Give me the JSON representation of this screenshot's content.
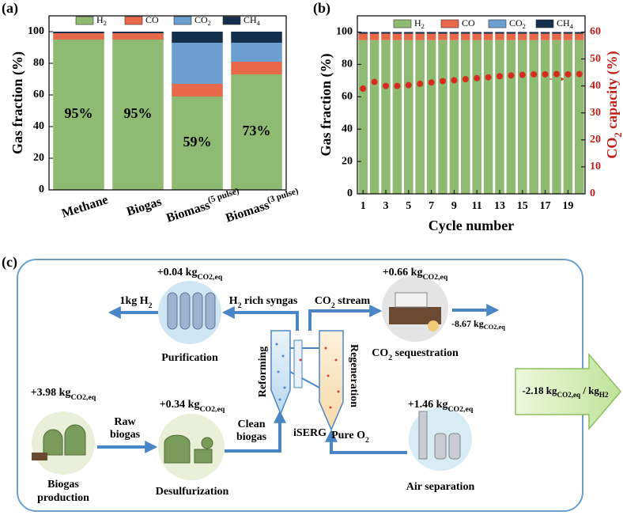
{
  "chart_data": [
    {
      "type": "bar",
      "stacked": true,
      "label": "(a)",
      "ylabel": "Gas fraction (%)",
      "categories": [
        "Methane",
        "Biogas",
        "Biomass(5 pulse)",
        "Biomass(3 pulse)"
      ],
      "series": [
        {
          "name": "H2",
          "color": "#8fba72",
          "values": [
            95,
            95,
            59,
            73
          ],
          "value_labels": [
            "95%",
            "95%",
            "59%",
            "73%"
          ]
        },
        {
          "name": "CO",
          "color": "#e8694a",
          "values": [
            4,
            4,
            8,
            8
          ]
        },
        {
          "name": "CO2",
          "color": "#6a9fcf",
          "values": [
            0,
            0,
            26,
            12
          ]
        },
        {
          "name": "CH4",
          "color": "#14304c",
          "values": [
            1,
            1,
            7,
            7
          ]
        }
      ],
      "ylim": [
        0,
        110
      ],
      "yticks": [
        0,
        20,
        40,
        60,
        80,
        100
      ]
    },
    {
      "type": "bar",
      "stacked": true,
      "label": "(b)",
      "ylabel": "Gas fraction (%)",
      "xlabel": "Cycle number",
      "y2label": "CO2 capacity (%)",
      "x": [
        1,
        2,
        3,
        4,
        5,
        6,
        7,
        8,
        9,
        10,
        11,
        12,
        13,
        14,
        15,
        16,
        17,
        18,
        19,
        20
      ],
      "series": [
        {
          "name": "H2",
          "color": "#8fba72",
          "values": [
            95,
            95,
            95,
            95,
            95,
            95,
            95,
            95,
            95,
            95,
            95,
            95,
            95,
            95,
            95,
            95,
            95,
            95,
            95,
            95
          ]
        },
        {
          "name": "CO",
          "color": "#e8694a",
          "values": [
            4,
            4,
            4,
            4,
            4,
            4,
            4,
            4,
            4,
            4,
            4,
            4,
            4,
            4,
            4,
            4,
            4,
            4,
            4,
            4
          ]
        },
        {
          "name": "CO2",
          "color": "#6a9fcf",
          "values": [
            0,
            0,
            0,
            0,
            0,
            0,
            0,
            0,
            0,
            0,
            0,
            0,
            0,
            0,
            0,
            0,
            0,
            0,
            0,
            0
          ]
        },
        {
          "name": "CH4",
          "color": "#14304c",
          "values": [
            1,
            1,
            1,
            1,
            1,
            1,
            1,
            1,
            1,
            1,
            1,
            1,
            1,
            1,
            1,
            1,
            1,
            1,
            1,
            1
          ]
        },
        {
          "type": "scatter",
          "axis": "y2",
          "color": "#d62b1e",
          "values": [
            39,
            41.5,
            40,
            40,
            40.3,
            40.8,
            41.3,
            41.8,
            42.1,
            42.5,
            42.9,
            43.2,
            43.6,
            43.9,
            44.1,
            44.3,
            44.3,
            44.4,
            44.3,
            44.4
          ]
        }
      ],
      "xlim": [
        0.5,
        20.5
      ],
      "xticks": [
        1,
        3,
        5,
        7,
        9,
        11,
        13,
        15,
        17,
        19
      ],
      "ylim": [
        0,
        110
      ],
      "yticks": [
        0,
        20,
        40,
        60,
        80,
        100
      ],
      "y2lim": [
        0,
        66
      ],
      "y2ticks": [
        0,
        10,
        20,
        30,
        40,
        50,
        60
      ],
      "y2color": "#c0201a"
    }
  ],
  "diagram": {
    "label": "(c)",
    "nodes": [
      {
        "label": [
          "Purification"
        ],
        "emission": [
          "+0.04 kg",
          "CO2,eq"
        ]
      },
      {
        "label": [
          "CO",
          "2",
          " sequestration"
        ],
        "emission": [
          "+0.66 kg",
          "CO2,eq"
        ],
        "credit": [
          "-8.67 kg",
          "CO2,eq"
        ]
      },
      {
        "lines": [
          "Biogas",
          "production"
        ],
        "emission": [
          "+3.98 kg",
          "CO2,eq"
        ]
      },
      {
        "label": [
          "Desulfurization"
        ],
        "emission": [
          "+0.34 kg",
          "CO2,eq"
        ]
      },
      {
        "label": [
          "Air separation"
        ],
        "emission": [
          "+1.46 kg",
          "CO2,eq"
        ]
      }
    ],
    "flows": [
      {
        "label": [
          "1kg H",
          "2"
        ]
      },
      {
        "label": [
          "H",
          "2",
          " rich syngas"
        ]
      },
      {
        "label": [
          "CO",
          "2",
          " stream"
        ]
      },
      {
        "lines": [
          "Raw",
          "biogas"
        ]
      },
      {
        "lines": [
          "Clean",
          "biogas"
        ]
      },
      {
        "label": [
          "Pure O",
          "2"
        ]
      }
    ],
    "reactor": {
      "name": "iSERG",
      "left": "Reforming",
      "right": "Regeneration"
    },
    "net": [
      "-2.18 kg",
      "CO2,eq",
      " / kg",
      "H2"
    ]
  }
}
